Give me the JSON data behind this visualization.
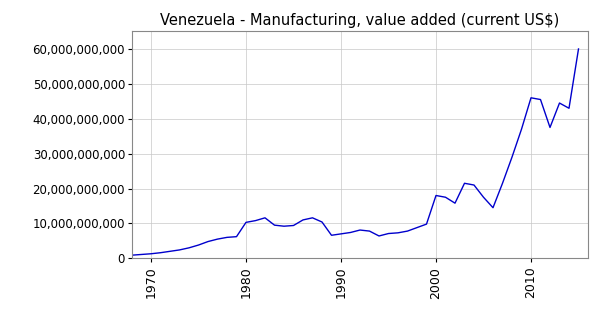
{
  "title": "Venezuela - Manufacturing, value added (current US$)",
  "line_color": "#0000cc",
  "background_color": "#ffffff",
  "grid_color": "#c8c8c8",
  "years": [
    1968,
    1969,
    1970,
    1971,
    1972,
    1973,
    1974,
    1975,
    1976,
    1977,
    1978,
    1979,
    1980,
    1981,
    1982,
    1983,
    1984,
    1985,
    1986,
    1987,
    1988,
    1989,
    1990,
    1991,
    1992,
    1993,
    1994,
    1995,
    1996,
    1997,
    1998,
    1999,
    2000,
    2001,
    2002,
    2003,
    2004,
    2005,
    2006,
    2007,
    2008,
    2009,
    2010,
    2011,
    2012,
    2013,
    2014,
    2015
  ],
  "values": [
    900000000,
    1100000000,
    1300000000,
    1600000000,
    2000000000,
    2400000000,
    3000000000,
    3800000000,
    4800000000,
    5500000000,
    6000000000,
    6200000000,
    10300000000,
    10800000000,
    11600000000,
    9500000000,
    9200000000,
    9400000000,
    11000000000,
    11600000000,
    10400000000,
    6600000000,
    7000000000,
    7400000000,
    8100000000,
    7800000000,
    6400000000,
    7100000000,
    7300000000,
    7800000000,
    8800000000,
    9800000000,
    18000000000,
    17500000000,
    15800000000,
    21500000000,
    21000000000,
    17500000000,
    14500000000,
    21500000000,
    29000000000,
    37000000000,
    46000000000,
    45500000000,
    37500000000,
    44500000000,
    43000000000,
    60000000000
  ],
  "xlim": [
    1968,
    2016
  ],
  "ylim": [
    0,
    65000000000
  ],
  "xticks": [
    1970,
    1980,
    1990,
    2000,
    2010
  ],
  "yticks": [
    0,
    10000000000,
    20000000000,
    30000000000,
    40000000000,
    50000000000,
    60000000000
  ],
  "ytick_labels": [
    "0",
    "10,000,000,000",
    "20,000,000,000",
    "30,000,000,000",
    "40,000,000,000",
    "50,000,000,000",
    "60,000,000,000"
  ]
}
